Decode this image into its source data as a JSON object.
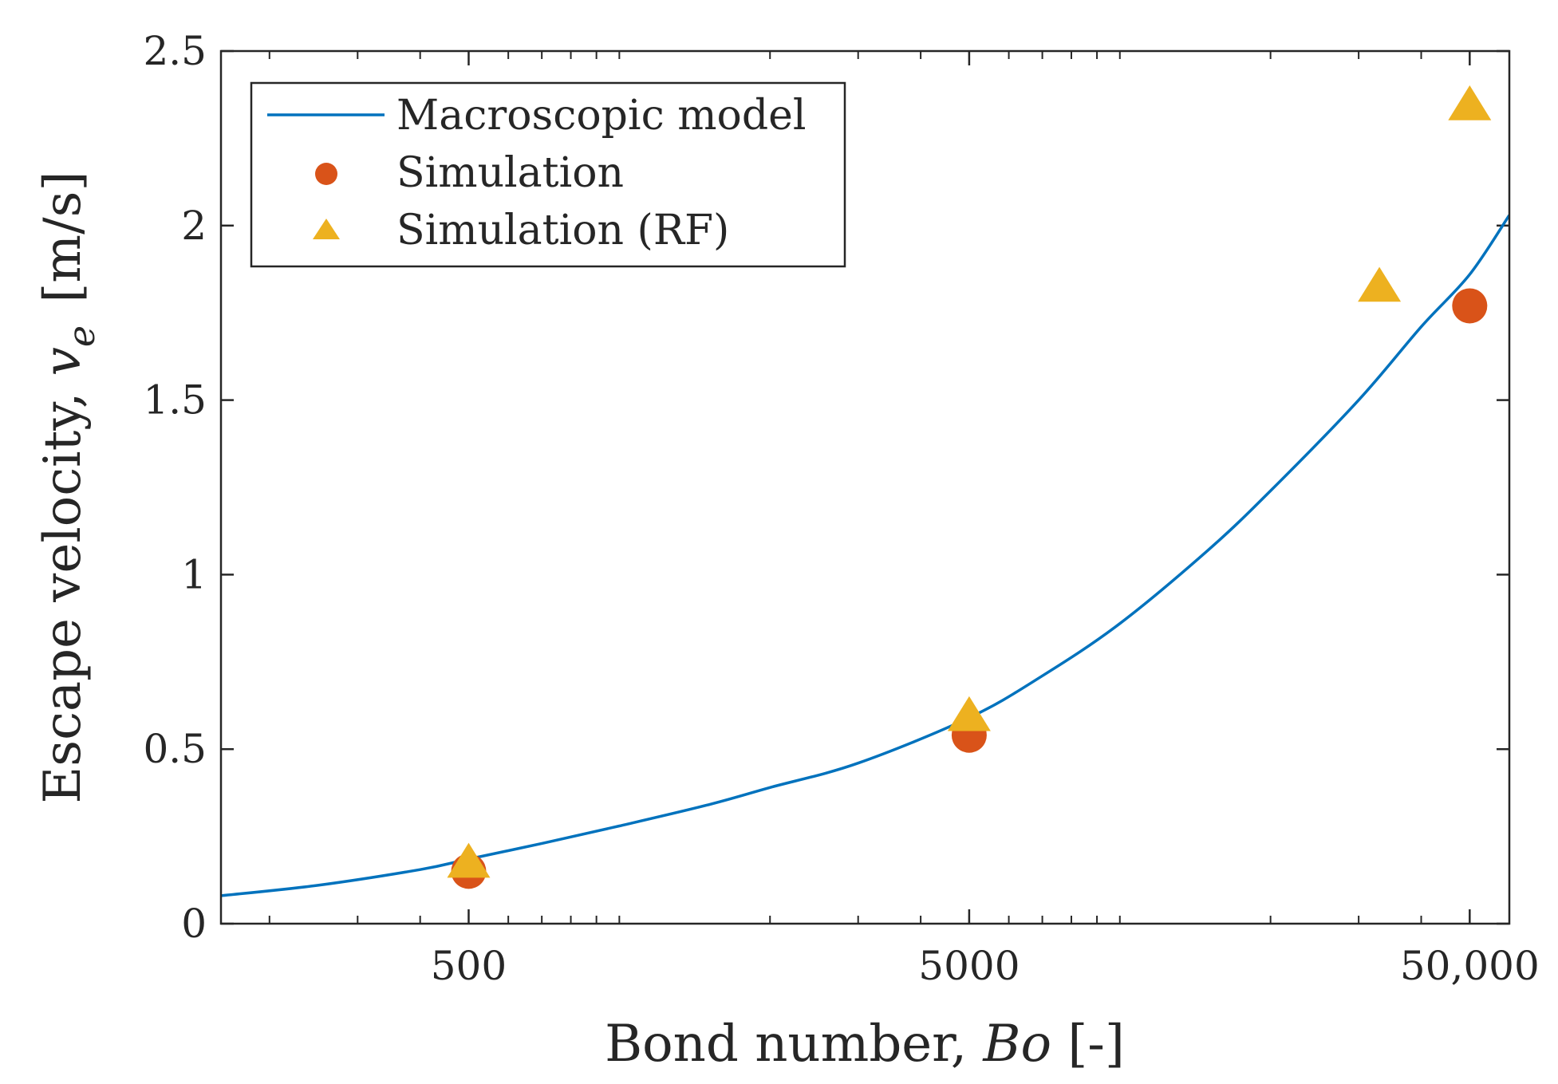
{
  "chart_data": {
    "type": "scatter",
    "title": "",
    "xlabel": {
      "main": "Bond number, ",
      "italic": "Bo",
      "suffix": " [-]"
    },
    "ylabel": {
      "main": "Escape velocity, ",
      "italic": "v",
      "sub": "e",
      "suffix": " [m/s]"
    },
    "xscale": "log",
    "xlim": [
      160,
      60000
    ],
    "ylim": [
      0,
      2.5
    ],
    "x_ticks": [
      500,
      5000,
      50000
    ],
    "x_tick_labels": [
      "500",
      "5000",
      "50,000"
    ],
    "y_ticks": [
      0,
      0.5,
      1,
      1.5,
      2,
      2.5
    ],
    "y_tick_labels": [
      "0",
      "0.5",
      "1",
      "1.5",
      "2",
      "2.5"
    ],
    "grid": false,
    "legend_position": "top-left",
    "series": [
      {
        "name": "Macroscopic model",
        "kind": "line",
        "color": "#0072BD",
        "x": [
          160,
          250,
          400,
          500,
          700,
          1000,
          1500,
          2000,
          3000,
          5000,
          7000,
          10000,
          15000,
          20000,
          30000,
          40000,
          50000,
          60000
        ],
        "y": [
          0.08,
          0.11,
          0.155,
          0.185,
          0.23,
          0.28,
          0.34,
          0.39,
          0.46,
          0.59,
          0.71,
          0.86,
          1.07,
          1.24,
          1.5,
          1.71,
          1.86,
          2.03
        ]
      },
      {
        "name": "Simulation",
        "kind": "marker",
        "marker": "circle",
        "color": "#D95319",
        "x": [
          500,
          5000,
          50000
        ],
        "y": [
          0.15,
          0.54,
          1.77
        ]
      },
      {
        "name": "Simulation (RF)",
        "kind": "marker",
        "marker": "triangle",
        "color": "#EDB120",
        "x": [
          500,
          5000,
          33000,
          50000
        ],
        "y": [
          0.17,
          0.59,
          1.82,
          2.34
        ]
      }
    ]
  }
}
